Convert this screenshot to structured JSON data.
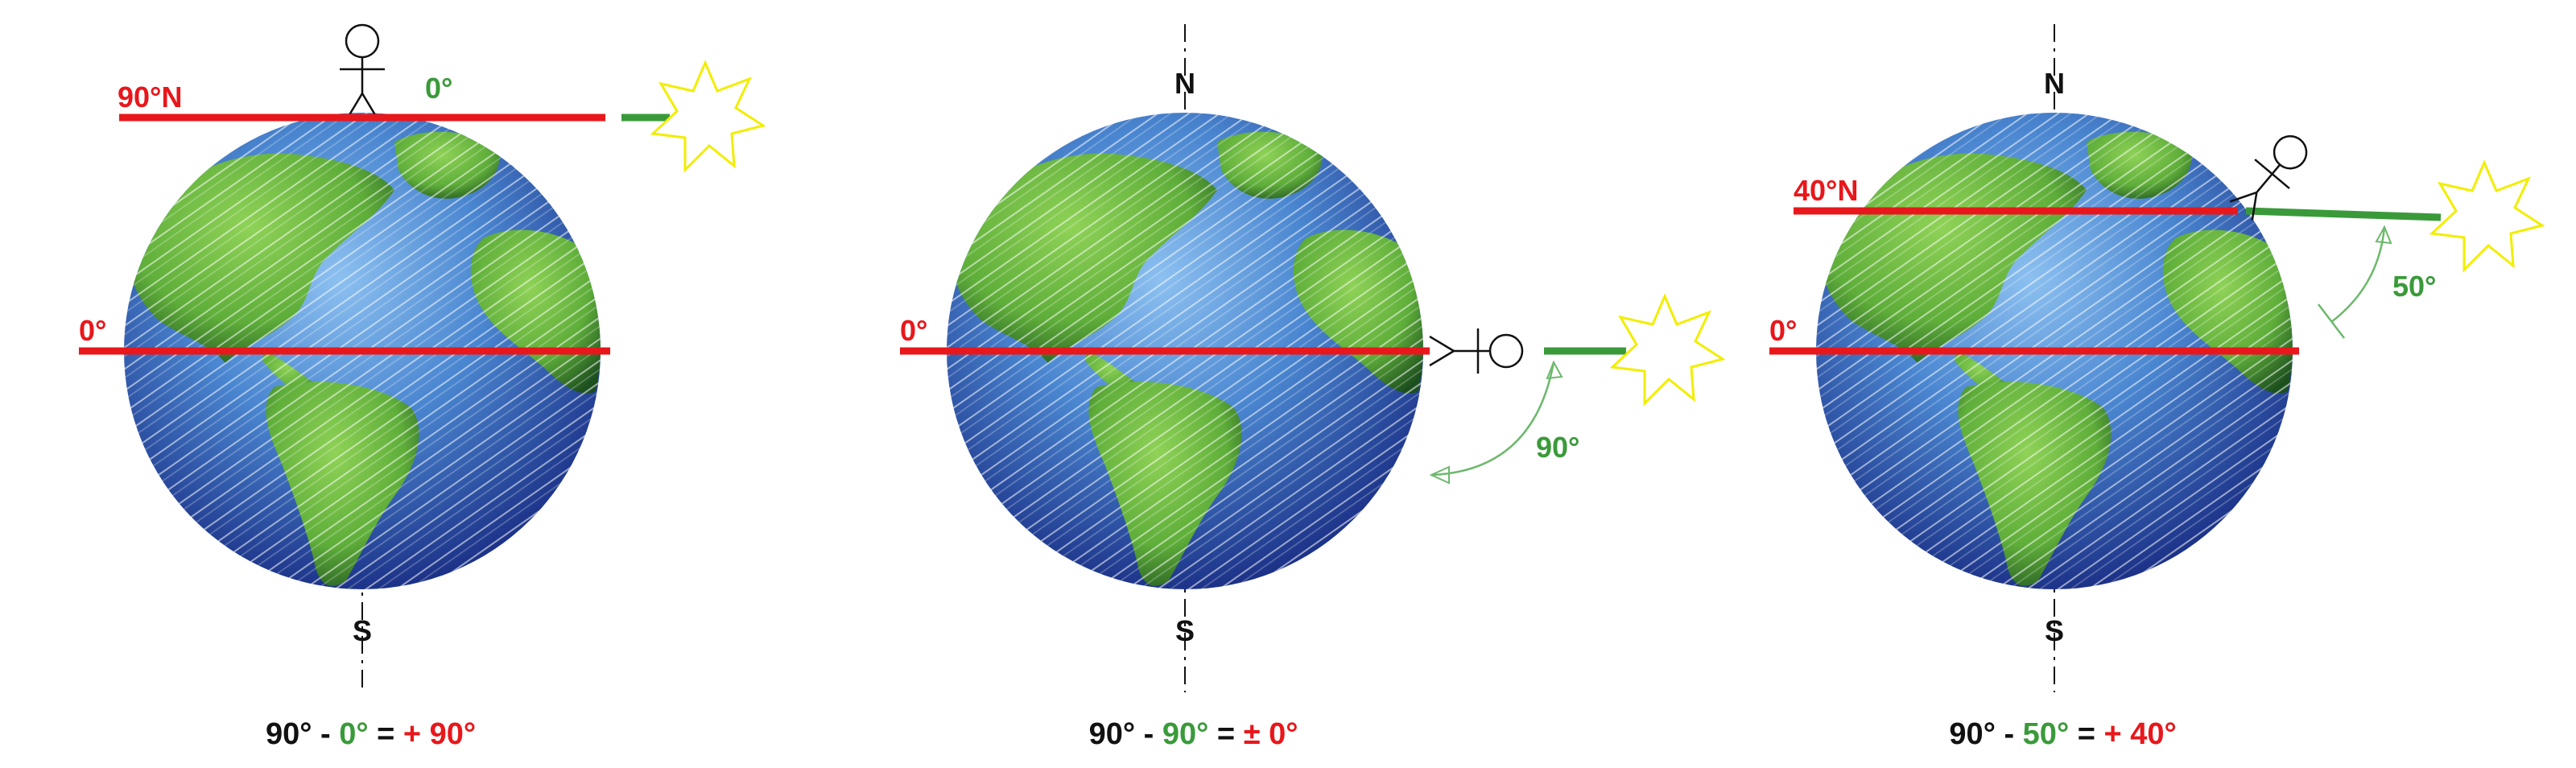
{
  "colors": {
    "latitude": "#e8171b",
    "sun_ray": "#3a9a3a",
    "angle_text": "#3a9a3a",
    "text": "#111111",
    "sun": "#f2ee00",
    "ocean_light": "#5f9fe0",
    "ocean_dark": "#1b2f8f",
    "land_light": "#7cc24a",
    "land_dark": "#1f5a20"
  },
  "panels": [
    {
      "lat_label": "90°N",
      "equator_label": "0°",
      "sun_angle_label": "0°",
      "formula": {
        "a": "90°",
        "minus": " - ",
        "b": "0°",
        "eq": " = ",
        "result": "+ 90°"
      },
      "north_label": "",
      "south_label": "S",
      "observer_icon": "stick-figure-icon",
      "sun_icon": "sun-icon"
    },
    {
      "lat_label": "",
      "equator_label": "0°",
      "sun_angle_label": "90°",
      "formula": {
        "a": "90°",
        "minus": " - ",
        "b": "90°",
        "eq": " = ",
        "result": "± 0°"
      },
      "north_label": "N",
      "south_label": "S",
      "observer_icon": "stick-figure-icon",
      "sun_icon": "sun-icon"
    },
    {
      "lat_label": "40°N",
      "equator_label": "0°",
      "sun_angle_label": "50°",
      "formula": {
        "a": "90°",
        "minus": " - ",
        "b": "50°",
        "eq": " = ",
        "result": "+ 40°"
      },
      "north_label": "N",
      "south_label": "S",
      "observer_icon": "stick-figure-icon",
      "sun_icon": "sun-icon"
    }
  ]
}
